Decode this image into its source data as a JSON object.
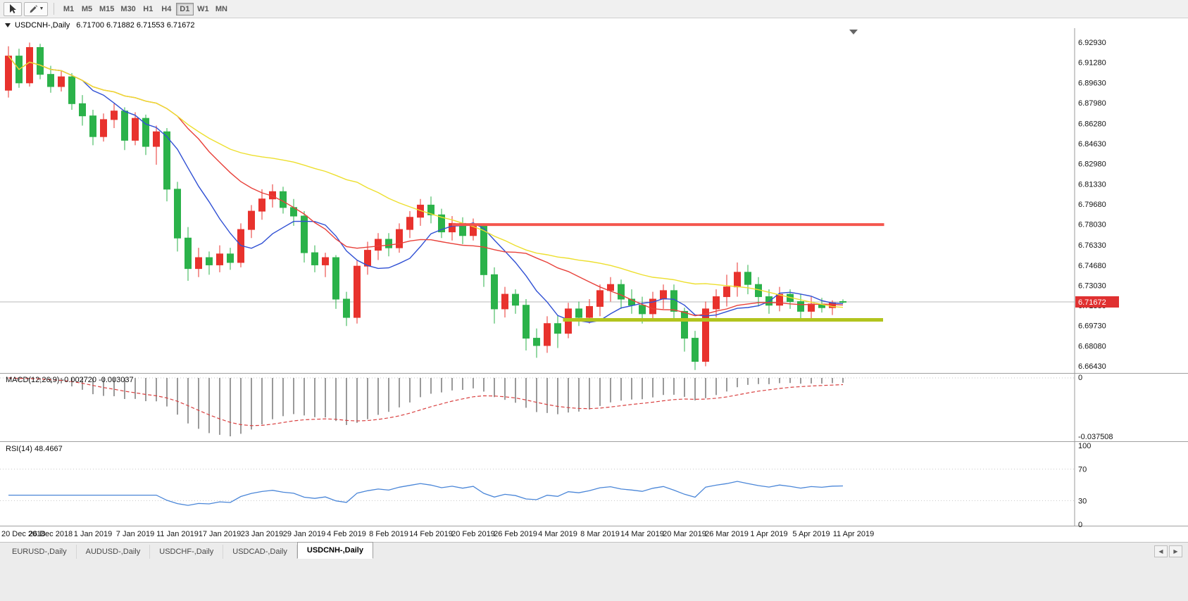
{
  "toolbar": {
    "tool_buttons": [
      {
        "icon": "pointer-icon",
        "dropdown": false
      },
      {
        "icon": "pencil-icon",
        "dropdown": true
      }
    ],
    "timeframes": [
      {
        "label": "M1",
        "active": false
      },
      {
        "label": "M5",
        "active": false
      },
      {
        "label": "M15",
        "active": false
      },
      {
        "label": "M30",
        "active": false
      },
      {
        "label": "H1",
        "active": false
      },
      {
        "label": "H4",
        "active": false
      },
      {
        "label": "D1",
        "active": true
      },
      {
        "label": "W1",
        "active": false
      },
      {
        "label": "MN",
        "active": false
      }
    ]
  },
  "chart": {
    "title": "USDCNH-,Daily",
    "ohlc_line": "6.71700 6.71882 6.71553 6.71672",
    "open": "6.71700",
    "high": "6.71882",
    "low": "6.71553",
    "close": "6.71672",
    "current_price": "6.71672",
    "current_price_color": "#e03131"
  },
  "chart_data": {
    "type": "candlestick",
    "symbol": "USDCNH",
    "timeframe": "Daily",
    "up_color": "#e8322d",
    "down_color": "#2bb24a",
    "price_axis_ticks": [
      {
        "label": "6.92930",
        "value": 6.9293
      },
      {
        "label": "6.91280",
        "value": 6.9128
      },
      {
        "label": "6.89630",
        "value": 6.8963
      },
      {
        "label": "6.87980",
        "value": 6.8798
      },
      {
        "label": "6.86280",
        "value": 6.8628
      },
      {
        "label": "6.84630",
        "value": 6.8463
      },
      {
        "label": "6.82980",
        "value": 6.8298
      },
      {
        "label": "6.81330",
        "value": 6.8133
      },
      {
        "label": "6.79680",
        "value": 6.7968
      },
      {
        "label": "6.78030",
        "value": 6.7803
      },
      {
        "label": "6.76330",
        "value": 6.7633
      },
      {
        "label": "6.74680",
        "value": 6.7468
      },
      {
        "label": "6.73030",
        "value": 6.7303
      },
      {
        "label": "6.71380",
        "value": 6.7138
      },
      {
        "label": "6.69730",
        "value": 6.6973
      },
      {
        "label": "6.68080",
        "value": 6.6808
      },
      {
        "label": "6.66430",
        "value": 6.6643
      }
    ],
    "x_axis_labels": [
      {
        "label": "20 Dec 2018",
        "bar": 0
      },
      {
        "label": "26 Dec 2018",
        "bar": 4
      },
      {
        "label": "1 Jan 2019",
        "bar": 8
      },
      {
        "label": "7 Jan 2019",
        "bar": 12
      },
      {
        "label": "11 Jan 2019",
        "bar": 16
      },
      {
        "label": "17 Jan 2019",
        "bar": 20
      },
      {
        "label": "23 Jan 2019",
        "bar": 24
      },
      {
        "label": "29 Jan 2019",
        "bar": 28
      },
      {
        "label": "4 Feb 2019",
        "bar": 32
      },
      {
        "label": "8 Feb 2019",
        "bar": 36
      },
      {
        "label": "14 Feb 2019",
        "bar": 40
      },
      {
        "label": "20 Feb 2019",
        "bar": 44
      },
      {
        "label": "26 Feb 2019",
        "bar": 48
      },
      {
        "label": "4 Mar 2019",
        "bar": 52
      },
      {
        "label": "8 Mar 2019",
        "bar": 56
      },
      {
        "label": "14 Mar 2019",
        "bar": 60
      },
      {
        "label": "20 Mar 2019",
        "bar": 64
      },
      {
        "label": "26 Mar 2019",
        "bar": 68
      },
      {
        "label": "1 Apr 2019",
        "bar": 72
      },
      {
        "label": "5 Apr 2019",
        "bar": 76
      },
      {
        "label": "11 Apr 2019",
        "bar": 80
      }
    ],
    "candles": [
      [
        6.89,
        6.926,
        6.884,
        6.918
      ],
      [
        6.918,
        6.924,
        6.892,
        6.896
      ],
      [
        6.896,
        6.929,
        6.893,
        6.925
      ],
      [
        6.925,
        6.928,
        6.899,
        6.903
      ],
      [
        6.903,
        6.91,
        6.888,
        6.893
      ],
      [
        6.893,
        6.906,
        6.889,
        6.901
      ],
      [
        6.901,
        6.904,
        6.874,
        6.879
      ],
      [
        6.879,
        6.886,
        6.861,
        6.869
      ],
      [
        6.869,
        6.874,
        6.845,
        6.852
      ],
      [
        6.852,
        6.871,
        6.848,
        6.866
      ],
      [
        6.866,
        6.879,
        6.859,
        6.873
      ],
      [
        6.873,
        6.876,
        6.841,
        6.849
      ],
      [
        6.849,
        6.872,
        6.845,
        6.867
      ],
      [
        6.867,
        6.87,
        6.837,
        6.844
      ],
      [
        6.844,
        6.861,
        6.829,
        6.856
      ],
      [
        6.856,
        6.859,
        6.799,
        6.809
      ],
      [
        6.809,
        6.815,
        6.758,
        6.769
      ],
      [
        6.769,
        6.778,
        6.734,
        6.744
      ],
      [
        6.744,
        6.761,
        6.737,
        6.753
      ],
      [
        6.753,
        6.758,
        6.739,
        6.747
      ],
      [
        6.747,
        6.763,
        6.741,
        6.756
      ],
      [
        6.756,
        6.761,
        6.743,
        6.749
      ],
      [
        6.749,
        6.781,
        6.745,
        6.776
      ],
      [
        6.776,
        6.796,
        6.769,
        6.791
      ],
      [
        6.791,
        6.809,
        6.784,
        6.801
      ],
      [
        6.801,
        6.813,
        6.794,
        6.807
      ],
      [
        6.807,
        6.811,
        6.789,
        6.794
      ],
      [
        6.794,
        6.801,
        6.779,
        6.787
      ],
      [
        6.787,
        6.791,
        6.749,
        6.757
      ],
      [
        6.757,
        6.763,
        6.741,
        6.747
      ],
      [
        6.747,
        6.757,
        6.737,
        6.753
      ],
      [
        6.753,
        6.755,
        6.711,
        6.719
      ],
      [
        6.719,
        6.725,
        6.697,
        6.704
      ],
      [
        6.704,
        6.751,
        6.699,
        6.746
      ],
      [
        6.746,
        6.766,
        6.739,
        6.759
      ],
      [
        6.759,
        6.773,
        6.751,
        6.768
      ],
      [
        6.768,
        6.773,
        6.754,
        6.761
      ],
      [
        6.761,
        6.781,
        6.757,
        6.776
      ],
      [
        6.776,
        6.791,
        6.769,
        6.786
      ],
      [
        6.786,
        6.801,
        6.779,
        6.796
      ],
      [
        6.796,
        6.803,
        6.781,
        6.788
      ],
      [
        6.788,
        6.793,
        6.769,
        6.774
      ],
      [
        6.774,
        6.787,
        6.767,
        6.781
      ],
      [
        6.781,
        6.786,
        6.764,
        6.771
      ],
      [
        6.771,
        6.785,
        6.767,
        6.779
      ],
      [
        6.779,
        6.781,
        6.729,
        6.739
      ],
      [
        6.739,
        6.745,
        6.699,
        6.711
      ],
      [
        6.711,
        6.729,
        6.704,
        6.723
      ],
      [
        6.723,
        6.727,
        6.707,
        6.714
      ],
      [
        6.714,
        6.719,
        6.677,
        6.687
      ],
      [
        6.687,
        6.695,
        6.671,
        6.681
      ],
      [
        6.681,
        6.705,
        6.675,
        6.699
      ],
      [
        6.699,
        6.706,
        6.679,
        6.691
      ],
      [
        6.691,
        6.716,
        6.687,
        6.711
      ],
      [
        6.711,
        6.717,
        6.697,
        6.704
      ],
      [
        6.704,
        6.719,
        6.699,
        6.713
      ],
      [
        6.713,
        6.731,
        6.705,
        6.726
      ],
      [
        6.726,
        6.737,
        6.717,
        6.731
      ],
      [
        6.731,
        6.735,
        6.711,
        6.719
      ],
      [
        6.719,
        6.727,
        6.707,
        6.714
      ],
      [
        6.714,
        6.721,
        6.699,
        6.707
      ],
      [
        6.707,
        6.725,
        6.703,
        6.719
      ],
      [
        6.719,
        6.731,
        6.711,
        6.726
      ],
      [
        6.726,
        6.731,
        6.703,
        6.709
      ],
      [
        6.709,
        6.712,
        6.676,
        6.687
      ],
      [
        6.687,
        6.693,
        6.661,
        6.668
      ],
      [
        6.668,
        6.717,
        6.664,
        6.711
      ],
      [
        6.711,
        6.727,
        6.704,
        6.721
      ],
      [
        6.721,
        6.739,
        6.713,
        6.729
      ],
      [
        6.729,
        6.749,
        6.721,
        6.741
      ],
      [
        6.741,
        6.747,
        6.723,
        6.731
      ],
      [
        6.731,
        6.737,
        6.713,
        6.721
      ],
      [
        6.721,
        6.727,
        6.707,
        6.714
      ],
      [
        6.714,
        6.729,
        6.709,
        6.723
      ],
      [
        6.723,
        6.727,
        6.711,
        6.717
      ],
      [
        6.717,
        6.723,
        6.701,
        6.709
      ],
      [
        6.709,
        6.721,
        6.703,
        6.715
      ],
      [
        6.715,
        6.72,
        6.708,
        6.712
      ],
      [
        6.712,
        6.718,
        6.706,
        6.716
      ],
      [
        6.717,
        6.71882,
        6.71553,
        6.71672
      ]
    ],
    "moving_averages": [
      {
        "name": "fast",
        "period": 8,
        "color": "#3050d4"
      },
      {
        "name": "medium",
        "period": 17,
        "color": "#e8413a"
      },
      {
        "name": "slow",
        "period": 34,
        "color": "#eddf2e"
      }
    ],
    "levels": [
      {
        "name": "resistance",
        "price": 6.78,
        "from_bar": 42,
        "to_bar": 82.9,
        "color": "#f4564e",
        "width": 4
      },
      {
        "name": "support",
        "price": 6.702,
        "from_bar": 52.5,
        "to_bar": 82.8,
        "color": "#b2c41e",
        "width": 5
      }
    ],
    "indicators": {
      "macd": {
        "label": "MACD(12,26,9)",
        "value1": "-0.002720",
        "value2": "-0.003037",
        "fast": 12,
        "slow": 26,
        "signal": 9,
        "axis_top": "0",
        "axis_bottom": "-0.037508",
        "histogram_color": "#9a9a9a",
        "signal_color": "#d94040"
      },
      "rsi": {
        "label": "RSI(14)",
        "value": "48.4667",
        "period": 14,
        "axis_labels": [
          "100",
          "70",
          "30",
          "0"
        ],
        "levels": [
          70,
          30
        ],
        "line_color": "#4a86d8"
      }
    }
  },
  "tabs": {
    "items": [
      {
        "label": "EURUSD-,Daily",
        "active": false
      },
      {
        "label": "AUDUSD-,Daily",
        "active": false
      },
      {
        "label": "USDCHF-,Daily",
        "active": false
      },
      {
        "label": "USDCAD-,Daily",
        "active": false
      },
      {
        "label": "USDCNH-,Daily",
        "active": true
      }
    ]
  }
}
